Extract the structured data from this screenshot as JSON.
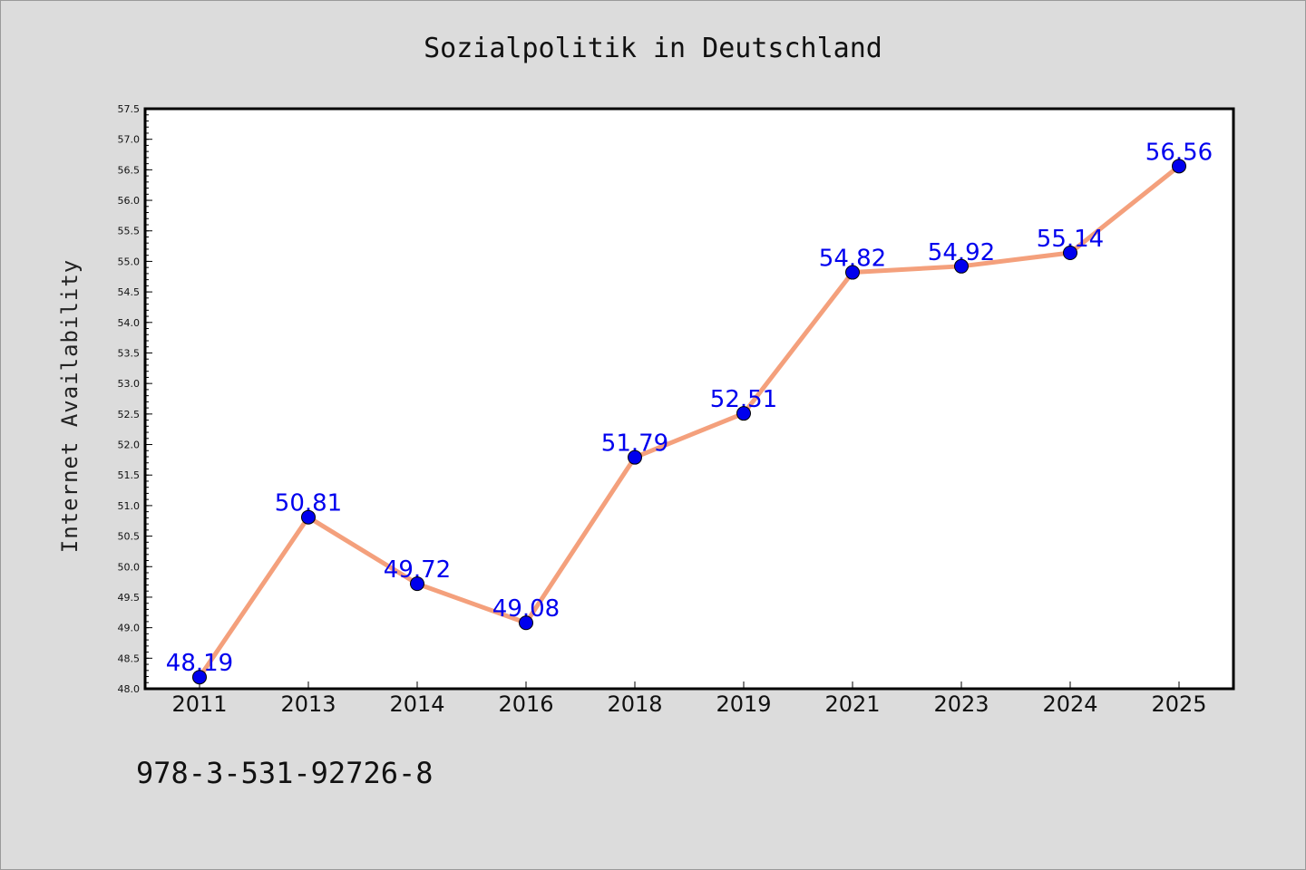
{
  "chart_data": {
    "type": "line",
    "title": "Sozialpolitik in Deutschland",
    "xlabel": "",
    "ylabel": "Internet Availability",
    "categories": [
      "2011",
      "2013",
      "2014",
      "2016",
      "2018",
      "2019",
      "2021",
      "2023",
      "2024",
      "2025"
    ],
    "values": [
      48.19,
      50.81,
      49.72,
      49.08,
      51.79,
      52.51,
      54.82,
      54.92,
      55.14,
      56.56
    ],
    "data_labels": [
      "48.19",
      "50.81",
      "49.72",
      "49.08",
      "51.79",
      "52.51",
      "54.82",
      "54.92",
      "55.14",
      "56.56"
    ],
    "ylim": [
      48.0,
      57.5
    ],
    "ytick_step": 0.5,
    "yticks": [
      "48.0",
      "48.5",
      "49.0",
      "49.5",
      "50.0",
      "50.5",
      "51.0",
      "51.5",
      "52.0",
      "52.5",
      "53.0",
      "53.5",
      "54.0",
      "54.5",
      "55.0",
      "55.5",
      "56.0",
      "56.5",
      "57.0",
      "57.5"
    ],
    "grid": false,
    "line_color": "#f4a07c",
    "marker_color": "#0000ee",
    "label_color": "#0000ee",
    "background_color": "#dcdcdc",
    "plot_background": "#ffffff"
  },
  "footer": {
    "isbn": "978-3-531-92726-8"
  }
}
